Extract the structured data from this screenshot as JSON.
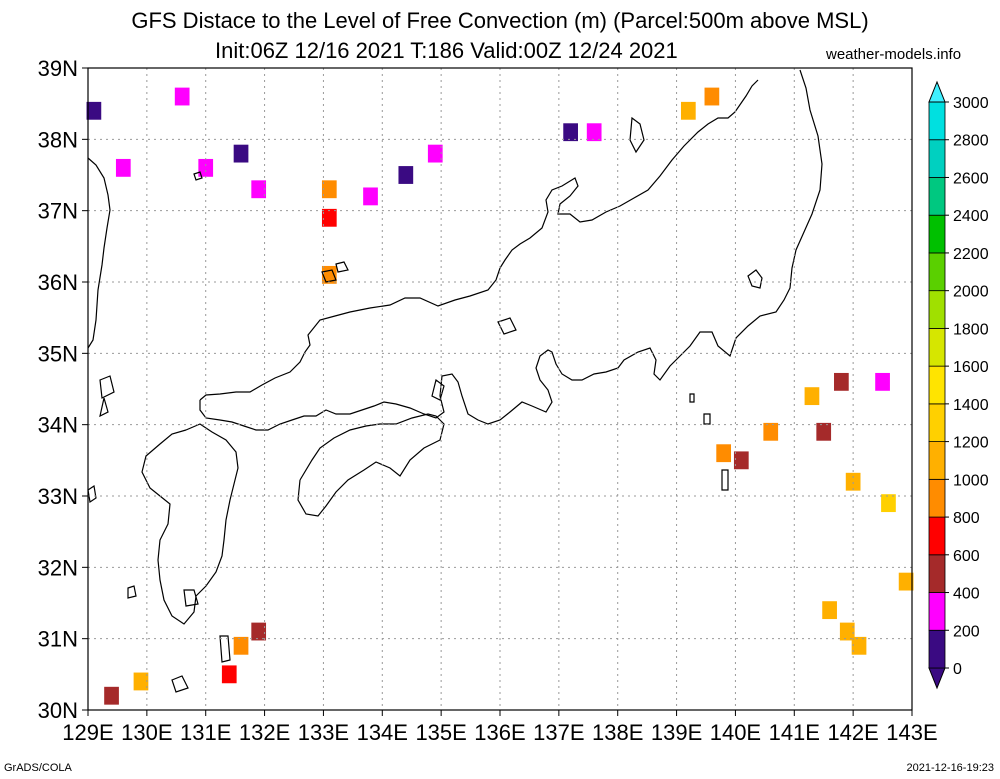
{
  "title": {
    "line1": "GFS Distace to the Level of Free Convection (m) (Parcel:500m above MSL)",
    "line2": "Init:06Z 12/16 2021 T:186 Valid:00Z 12/24 2021",
    "site": "weather-models.info"
  },
  "footer": {
    "left": "GrADS/COLA",
    "right": "2021-12-16-19:23"
  },
  "chart_data": {
    "type": "heatmap",
    "title": "GFS Distace to the Level of Free Convection (m) (Parcel:500m above MSL)",
    "subtitle": "Init:06Z 12/16 2021 T:186 Valid:00Z 12/24 2021",
    "xlim": [
      129,
      143
    ],
    "ylim": [
      30,
      39
    ],
    "x_ticks": [
      "129E",
      "130E",
      "131E",
      "132E",
      "133E",
      "134E",
      "135E",
      "136E",
      "137E",
      "138E",
      "139E",
      "140E",
      "141E",
      "142E",
      "143E"
    ],
    "y_ticks": [
      "30N",
      "31N",
      "32N",
      "33N",
      "34N",
      "35N",
      "36N",
      "37N",
      "38N",
      "39N"
    ],
    "grid": true,
    "colorbar": {
      "position": "right",
      "levels": [
        0,
        200,
        400,
        600,
        800,
        1000,
        1200,
        1400,
        1600,
        1800,
        2000,
        2200,
        2400,
        2600,
        2800,
        3000
      ],
      "colors": [
        "#3a0a82",
        "#ff00ff",
        "#a52a2a",
        "#ff0000",
        "#ff8c00",
        "#ffb000",
        "#ffd000",
        "#ffe400",
        "#d6e600",
        "#a0e000",
        "#5ad000",
        "#00c000",
        "#00c880",
        "#00d0c0",
        "#00e0e0",
        "#40f0ff"
      ],
      "labels": [
        "0",
        "200",
        "400",
        "600",
        "800",
        "1000",
        "1200",
        "1400",
        "1600",
        "1800",
        "2000",
        "2200",
        "2400",
        "2600",
        "2800",
        "3000"
      ]
    },
    "cells": [
      {
        "x": 129.1,
        "y": 38.4,
        "v": 100
      },
      {
        "x": 129.6,
        "y": 37.6,
        "v": 300
      },
      {
        "x": 130.6,
        "y": 38.6,
        "v": 200
      },
      {
        "x": 131.0,
        "y": 37.6,
        "v": 350
      },
      {
        "x": 131.6,
        "y": 37.8,
        "v": 100
      },
      {
        "x": 131.9,
        "y": 37.3,
        "v": 300
      },
      {
        "x": 133.1,
        "y": 37.3,
        "v": 900
      },
      {
        "x": 133.1,
        "y": 36.9,
        "v": 700
      },
      {
        "x": 133.8,
        "y": 37.2,
        "v": 200
      },
      {
        "x": 134.4,
        "y": 37.5,
        "v": 50
      },
      {
        "x": 134.9,
        "y": 37.8,
        "v": 200
      },
      {
        "x": 133.1,
        "y": 36.1,
        "v": 900
      },
      {
        "x": 137.2,
        "y": 38.1,
        "v": 100
      },
      {
        "x": 137.6,
        "y": 38.1,
        "v": 300
      },
      {
        "x": 139.2,
        "y": 38.4,
        "v": 1100
      },
      {
        "x": 139.6,
        "y": 38.6,
        "v": 900
      },
      {
        "x": 129.4,
        "y": 30.2,
        "v": 500
      },
      {
        "x": 129.9,
        "y": 30.4,
        "v": 1000
      },
      {
        "x": 131.4,
        "y": 30.5,
        "v": 600
      },
      {
        "x": 131.6,
        "y": 30.9,
        "v": 800
      },
      {
        "x": 131.9,
        "y": 31.1,
        "v": 500
      },
      {
        "x": 139.8,
        "y": 33.6,
        "v": 900
      },
      {
        "x": 140.1,
        "y": 33.5,
        "v": 500
      },
      {
        "x": 140.6,
        "y": 33.9,
        "v": 800
      },
      {
        "x": 141.3,
        "y": 34.4,
        "v": 1100
      },
      {
        "x": 141.8,
        "y": 34.6,
        "v": 400
      },
      {
        "x": 142.5,
        "y": 34.6,
        "v": 300
      },
      {
        "x": 141.5,
        "y": 33.9,
        "v": 500
      },
      {
        "x": 142.0,
        "y": 33.2,
        "v": 1100
      },
      {
        "x": 142.6,
        "y": 32.9,
        "v": 1200
      },
      {
        "x": 142.9,
        "y": 31.8,
        "v": 1100
      },
      {
        "x": 141.6,
        "y": 31.4,
        "v": 1100
      },
      {
        "x": 141.9,
        "y": 31.1,
        "v": 1100
      },
      {
        "x": 142.1,
        "y": 30.9,
        "v": 1000
      }
    ]
  }
}
